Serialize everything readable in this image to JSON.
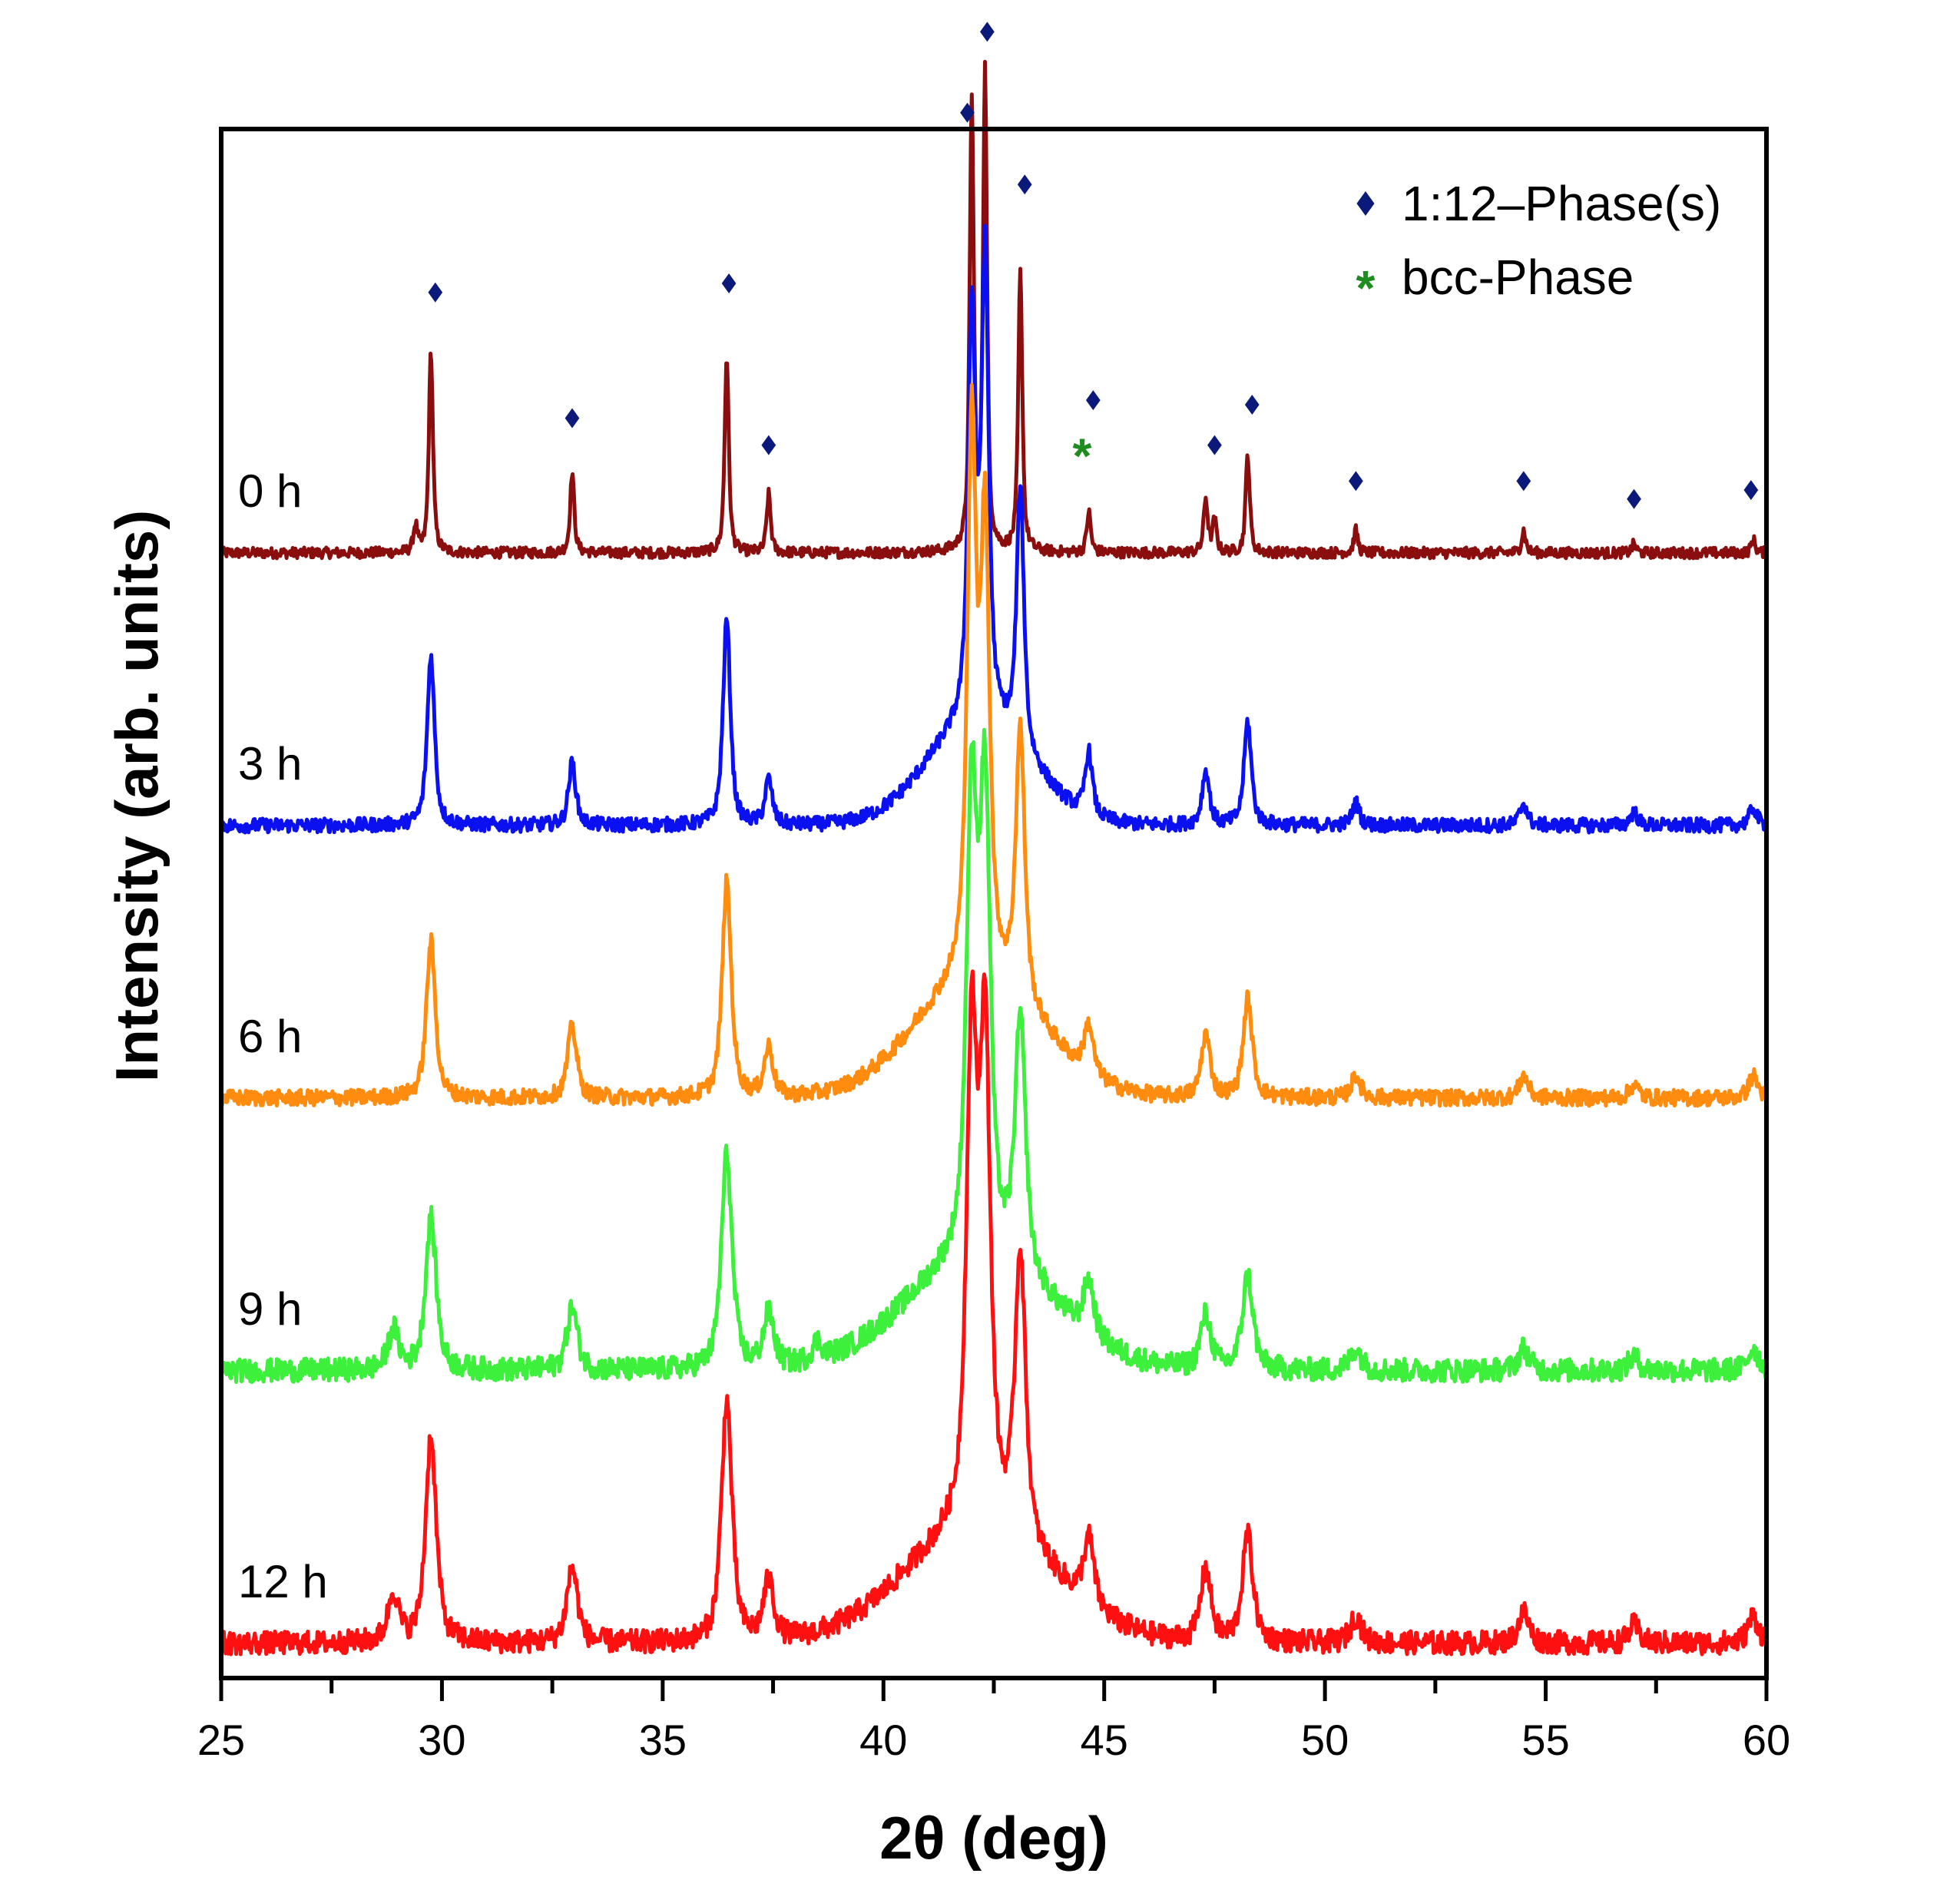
{
  "chart_data": {
    "type": "line",
    "title": "",
    "xlabel": "2θ (deg)",
    "ylabel": "Intensity (arb. units)",
    "xlim": [
      25,
      60
    ],
    "xticks": [
      "25",
      "30",
      "35",
      "40",
      "45",
      "50",
      "55",
      "60"
    ],
    "x_tick_values": [
      25,
      30,
      35,
      40,
      45,
      50,
      55,
      60
    ],
    "y_tick_labels_shown": false,
    "grid": false,
    "legend": {
      "placement": "top-right",
      "entries": [
        {
          "label": "1:12–Phase(s)",
          "marker": "diamond",
          "color": "#0b1a7a"
        },
        {
          "label": "bcc-Phase",
          "marker": "asterisk",
          "color": "#1e8c1e"
        }
      ]
    },
    "series": [
      {
        "name": "0 h",
        "label": "0 h",
        "color": "#8b0e0e",
        "offset": 4.0,
        "broadening": 1.0,
        "noise": 0.012,
        "peaks": [
          [
            29.4,
            0.06
          ],
          [
            29.75,
            0.45
          ],
          [
            32.95,
            0.18
          ],
          [
            36.45,
            0.44
          ],
          [
            37.4,
            0.13
          ],
          [
            42.0,
            1.0
          ],
          [
            42.3,
            1.06
          ],
          [
            43.1,
            0.62
          ],
          [
            44.65,
            0.09
          ],
          [
            47.3,
            0.12
          ],
          [
            47.5,
            0.07
          ],
          [
            48.25,
            0.22
          ],
          [
            50.7,
            0.05
          ],
          [
            54.5,
            0.05
          ],
          [
            57.0,
            0.02
          ],
          [
            59.7,
            0.03
          ]
        ]
      },
      {
        "name": "3 h",
        "label": "3 h",
        "color": "#0a10f0",
        "offset": 3.0,
        "broadening": 1.8,
        "noise": 0.016,
        "peaks": [
          [
            29.75,
            0.38
          ],
          [
            32.95,
            0.14
          ],
          [
            36.45,
            0.46
          ],
          [
            37.4,
            0.1
          ],
          [
            42.0,
            0.9
          ],
          [
            42.3,
            1.02
          ],
          [
            43.1,
            0.58
          ],
          [
            44.65,
            0.14
          ],
          [
            47.3,
            0.12
          ],
          [
            48.25,
            0.23
          ],
          [
            50.7,
            0.05
          ],
          [
            54.5,
            0.05
          ],
          [
            57.0,
            0.03
          ],
          [
            59.7,
            0.04
          ]
        ]
      },
      {
        "name": "6 h",
        "label": "6 h",
        "color": "#ff8c0f",
        "offset": 2.0,
        "broadening": 2.2,
        "noise": 0.018,
        "peaks": [
          [
            29.75,
            0.35
          ],
          [
            32.95,
            0.16
          ],
          [
            36.45,
            0.48
          ],
          [
            37.4,
            0.11
          ],
          [
            42.0,
            1.2
          ],
          [
            42.3,
            0.98
          ],
          [
            43.1,
            0.6
          ],
          [
            44.65,
            0.11
          ],
          [
            47.3,
            0.14
          ],
          [
            48.25,
            0.22
          ],
          [
            50.7,
            0.05
          ],
          [
            54.5,
            0.05
          ],
          [
            57.0,
            0.03
          ],
          [
            59.7,
            0.05
          ]
        ]
      },
      {
        "name": "9 h",
        "label": "9 h",
        "color": "#3cf03c",
        "offset": 1.0,
        "broadening": 2.6,
        "noise": 0.026,
        "peaks": [
          [
            28.9,
            0.09
          ],
          [
            29.75,
            0.34
          ],
          [
            32.95,
            0.14
          ],
          [
            36.45,
            0.48
          ],
          [
            37.4,
            0.12
          ],
          [
            38.5,
            0.04
          ],
          [
            42.0,
            1.0
          ],
          [
            42.3,
            1.0
          ],
          [
            43.1,
            0.56
          ],
          [
            44.65,
            0.12
          ],
          [
            47.3,
            0.12
          ],
          [
            48.25,
            0.21
          ],
          [
            50.7,
            0.05
          ],
          [
            54.5,
            0.05
          ],
          [
            57.0,
            0.03
          ],
          [
            59.7,
            0.05
          ]
        ]
      },
      {
        "name": "12 h",
        "label": "12 h",
        "color": "#ff1010",
        "offset": 0.0,
        "broadening": 2.6,
        "noise": 0.026,
        "peaks": [
          [
            28.9,
            0.11
          ],
          [
            29.75,
            0.46
          ],
          [
            32.95,
            0.17
          ],
          [
            36.45,
            0.54
          ],
          [
            37.4,
            0.13
          ],
          [
            42.0,
            1.05
          ],
          [
            42.3,
            1.05
          ],
          [
            43.1,
            0.64
          ],
          [
            44.65,
            0.15
          ],
          [
            47.3,
            0.16
          ],
          [
            48.25,
            0.24
          ],
          [
            50.7,
            0.06
          ],
          [
            54.5,
            0.07
          ],
          [
            57.0,
            0.04
          ],
          [
            59.7,
            0.06
          ]
        ]
      }
    ],
    "annotations": {
      "series": "0 h",
      "diamond_positions": [
        29.85,
        32.95,
        36.5,
        37.4,
        41.9,
        42.35,
        43.2,
        44.75,
        47.5,
        48.35,
        50.7,
        54.5,
        57.0,
        59.65
      ],
      "diamond_heights": [
        0.58,
        0.3,
        0.6,
        0.24,
        0.98,
        1.16,
        0.82,
        0.34,
        0.24,
        0.33,
        0.16,
        0.16,
        0.12,
        0.14
      ],
      "asterisk_positions": [
        44.5
      ],
      "asterisk_heights": [
        0.23
      ]
    }
  }
}
